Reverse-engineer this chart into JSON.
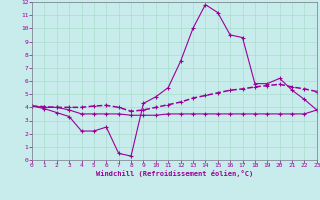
{
  "xlabel": "Windchill (Refroidissement éolien,°C)",
  "background_color": "#c8ecec",
  "grid_color": "#aaddcc",
  "line_color": "#990099",
  "xlim": [
    0,
    23
  ],
  "ylim": [
    0,
    12
  ],
  "xticks": [
    0,
    1,
    2,
    3,
    4,
    5,
    6,
    7,
    8,
    9,
    10,
    11,
    12,
    13,
    14,
    15,
    16,
    17,
    18,
    19,
    20,
    21,
    22,
    23
  ],
  "yticks": [
    0,
    1,
    2,
    3,
    4,
    5,
    6,
    7,
    8,
    9,
    10,
    11,
    12
  ],
  "line1_x": [
    0,
    1,
    2,
    3,
    4,
    5,
    6,
    7,
    8,
    9,
    10,
    11,
    12,
    13,
    14,
    15,
    16,
    17,
    18,
    19,
    20,
    21,
    22,
    23
  ],
  "line1_y": [
    4.1,
    3.9,
    3.6,
    3.3,
    2.2,
    2.2,
    2.5,
    0.5,
    0.3,
    4.3,
    4.8,
    5.5,
    7.5,
    10.0,
    11.8,
    11.2,
    9.5,
    9.3,
    5.8,
    5.8,
    6.2,
    5.3,
    4.6,
    3.8
  ],
  "line2_x": [
    0,
    1,
    2,
    3,
    4,
    5,
    6,
    7,
    8,
    9,
    10,
    11,
    12,
    13,
    14,
    15,
    16,
    17,
    18,
    19,
    20,
    21,
    22,
    23
  ],
  "line2_y": [
    4.1,
    4.05,
    4.0,
    4.0,
    4.0,
    4.1,
    4.15,
    4.0,
    3.7,
    3.8,
    4.0,
    4.2,
    4.4,
    4.7,
    4.9,
    5.1,
    5.3,
    5.4,
    5.55,
    5.65,
    5.75,
    5.55,
    5.4,
    5.2
  ],
  "line3_x": [
    0,
    1,
    2,
    3,
    4,
    5,
    6,
    7,
    8,
    9,
    10,
    11,
    12,
    13,
    14,
    15,
    16,
    17,
    18,
    19,
    20,
    21,
    22,
    23
  ],
  "line3_y": [
    4.1,
    4.0,
    4.0,
    3.8,
    3.5,
    3.5,
    3.5,
    3.5,
    3.4,
    3.4,
    3.4,
    3.5,
    3.5,
    3.5,
    3.5,
    3.5,
    3.5,
    3.5,
    3.5,
    3.5,
    3.5,
    3.5,
    3.5,
    3.8
  ],
  "marker": "+",
  "markersize": 3,
  "linewidth": 0.8
}
